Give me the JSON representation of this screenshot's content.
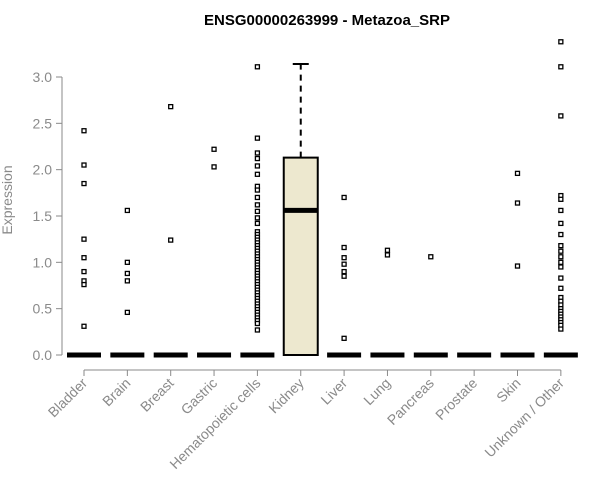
{
  "chart_data": {
    "type": "boxplot",
    "title": "ENSG00000263999 - Metazoa_SRP",
    "xlabel": "",
    "ylabel": "Expression",
    "ylim": [
      0,
      3.5
    ],
    "yticks": [
      "0.0",
      "0.5",
      "1.0",
      "1.5",
      "2.0",
      "2.5",
      "3.0"
    ],
    "yticks_values": [
      0,
      0.5,
      1.0,
      1.5,
      2.0,
      2.5,
      3.0
    ],
    "box_fill": "#ede8cf",
    "categories": [
      "Bladder",
      "Brain",
      "Breast",
      "Gastric",
      "Hematopoietic cells",
      "Kidney",
      "Liver",
      "Lung",
      "Pancreas",
      "Prostate",
      "Skin",
      "Unknown / Other"
    ],
    "boxes": [
      {
        "category": "Bladder",
        "q1": 0,
        "median": 0,
        "q3": 0,
        "whisker_low": 0,
        "whisker_high": 0,
        "outliers": [
          2.42,
          2.05,
          1.85,
          1.25,
          1.05,
          0.9,
          0.8,
          0.76,
          0.31
        ]
      },
      {
        "category": "Brain",
        "q1": 0,
        "median": 0,
        "q3": 0,
        "whisker_low": 0,
        "whisker_high": 0,
        "outliers": [
          1.56,
          1.0,
          0.88,
          0.8,
          0.46
        ]
      },
      {
        "category": "Breast",
        "q1": 0,
        "median": 0,
        "q3": 0,
        "whisker_low": 0,
        "whisker_high": 0,
        "outliers": [
          2.68,
          1.24
        ]
      },
      {
        "category": "Gastric",
        "q1": 0,
        "median": 0,
        "q3": 0,
        "whisker_low": 0,
        "whisker_high": 0,
        "outliers": [
          2.22,
          2.03
        ]
      },
      {
        "category": "Hematopoietic cells",
        "q1": 0,
        "median": 0,
        "q3": 0,
        "whisker_low": 0,
        "whisker_high": 0,
        "outliers": [
          3.11,
          2.34,
          2.18,
          2.12,
          2.04,
          1.95,
          1.82,
          1.78,
          1.7,
          1.62,
          1.55,
          1.48,
          1.42,
          1.33,
          1.3,
          1.27,
          1.24,
          1.21,
          1.18,
          1.15,
          1.12,
          1.09,
          1.06,
          1.03,
          1.0,
          0.97,
          0.94,
          0.91,
          0.88,
          0.85,
          0.82,
          0.79,
          0.76,
          0.73,
          0.7,
          0.67,
          0.64,
          0.61,
          0.58,
          0.55,
          0.52,
          0.49,
          0.46,
          0.43,
          0.4,
          0.37,
          0.34,
          0.27
        ]
      },
      {
        "category": "Kidney",
        "q1": 0.0,
        "median": 1.56,
        "q3": 2.13,
        "whisker_low": 0.0,
        "whisker_high": 3.14,
        "outliers": []
      },
      {
        "category": "Liver",
        "q1": 0,
        "median": 0,
        "q3": 0,
        "whisker_low": 0,
        "whisker_high": 0,
        "outliers": [
          1.7,
          1.16,
          1.05,
          0.98,
          0.9,
          0.85,
          0.18
        ]
      },
      {
        "category": "Lung",
        "q1": 0,
        "median": 0,
        "q3": 0,
        "whisker_low": 0,
        "whisker_high": 0,
        "outliers": [
          1.13,
          1.08
        ]
      },
      {
        "category": "Pancreas",
        "q1": 0,
        "median": 0,
        "q3": 0,
        "whisker_low": 0,
        "whisker_high": 0,
        "outliers": [
          1.06
        ]
      },
      {
        "category": "Prostate",
        "q1": 0,
        "median": 0,
        "q3": 0,
        "whisker_low": 0,
        "whisker_high": 0,
        "outliers": []
      },
      {
        "category": "Skin",
        "q1": 0,
        "median": 0,
        "q3": 0,
        "whisker_low": 0,
        "whisker_high": 0,
        "outliers": [
          1.96,
          1.64,
          0.96
        ]
      },
      {
        "category": "Unknown / Other",
        "q1": 0,
        "median": 0,
        "q3": 0,
        "whisker_low": 0,
        "whisker_high": 0,
        "outliers": [
          3.38,
          3.11,
          2.58,
          1.72,
          1.68,
          1.56,
          1.42,
          1.3,
          1.18,
          1.12,
          1.06,
          1.0,
          0.95,
          0.83,
          0.72,
          0.62,
          0.58,
          0.54,
          0.5,
          0.47,
          0.44,
          0.41,
          0.38,
          0.35,
          0.32,
          0.28
        ]
      }
    ]
  }
}
